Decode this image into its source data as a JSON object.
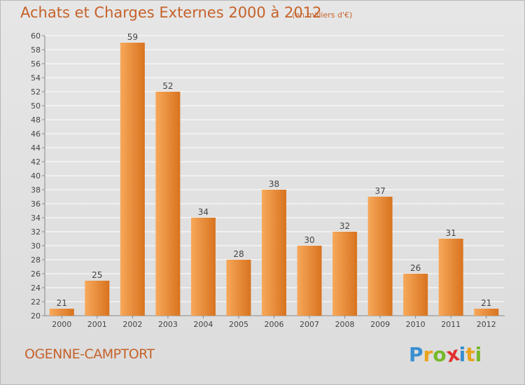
{
  "chart_data": {
    "type": "bar",
    "title": "Achats et Charges Externes 2000 à 2012",
    "subtitle": "(en milliers d'€)",
    "categories": [
      "2000",
      "2001",
      "2002",
      "2003",
      "2004",
      "2005",
      "2006",
      "2007",
      "2008",
      "2009",
      "2010",
      "2011",
      "2012"
    ],
    "values": [
      21,
      25,
      59,
      52,
      34,
      28,
      38,
      30,
      32,
      37,
      26,
      31,
      21
    ],
    "ylim": [
      20,
      60
    ],
    "yticks": [
      20,
      22,
      24,
      26,
      28,
      30,
      32,
      34,
      36,
      38,
      40,
      42,
      44,
      46,
      48,
      50,
      52,
      54,
      56,
      58,
      60
    ],
    "grid": true,
    "colors": {
      "bar_light": "#f7a85a",
      "bar_dark": "#d8731f",
      "text": "#c5622a"
    }
  },
  "commune": "OGENNE-CAMPTORT",
  "logo": {
    "letters": [
      "P",
      "r",
      "o",
      "x",
      "i",
      "t",
      "i"
    ],
    "colors": [
      "#3a8fd1",
      "#e8a31c",
      "#76b82a",
      "#e0312f",
      "#3a8fd1",
      "#e8a31c",
      "#76b82a"
    ]
  }
}
